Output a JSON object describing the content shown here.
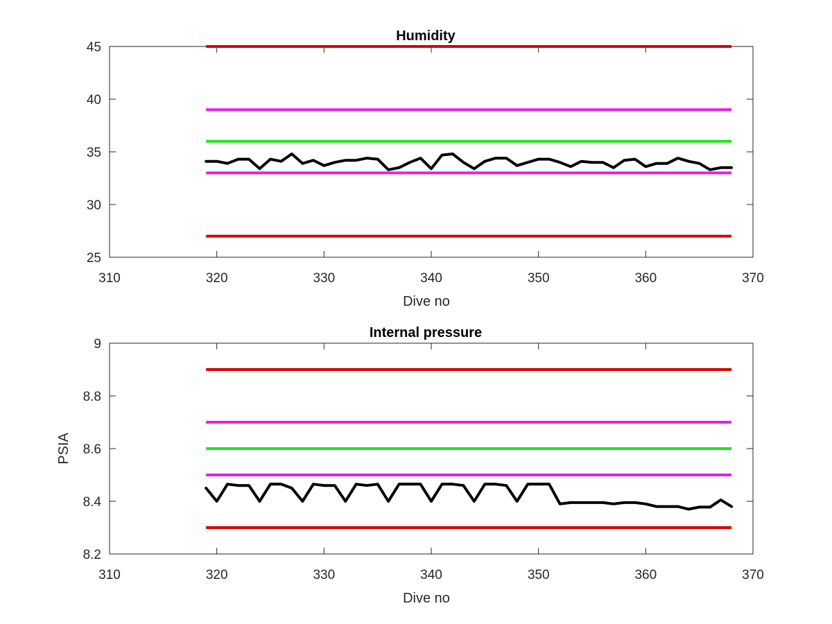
{
  "chart_data": [
    {
      "type": "line",
      "title": "Humidity",
      "xlabel": "Dive no",
      "ylabel": "",
      "xlim": [
        310,
        370
      ],
      "ylim": [
        25,
        45
      ],
      "xticks": [
        310,
        320,
        330,
        340,
        350,
        360,
        370
      ],
      "yticks": [
        25,
        30,
        35,
        40,
        45
      ],
      "xtick_labels": [
        "310",
        "320",
        "330",
        "340",
        "350",
        "360",
        "370"
      ],
      "ytick_labels": [
        "25",
        "30",
        "35",
        "40",
        "45"
      ],
      "grid": false,
      "reference_lines": [
        {
          "y": 45,
          "x_range": [
            319,
            368
          ],
          "color": "#d40000"
        },
        {
          "y": 39,
          "x_range": [
            319,
            368
          ],
          "color": "#e51ee5"
        },
        {
          "y": 36,
          "x_range": [
            319,
            368
          ],
          "color": "#1de61d"
        },
        {
          "y": 33,
          "x_range": [
            319,
            368
          ],
          "color": "#e51ee5"
        },
        {
          "y": 27,
          "x_range": [
            319,
            368
          ],
          "color": "#d40000"
        }
      ],
      "series": [
        {
          "color": "#000000",
          "x": [
            319,
            320,
            321,
            322,
            323,
            324,
            325,
            326,
            327,
            328,
            329,
            330,
            331,
            332,
            333,
            334,
            335,
            336,
            337,
            338,
            339,
            340,
            341,
            342,
            343,
            344,
            345,
            346,
            347,
            348,
            349,
            350,
            351,
            352,
            353,
            354,
            355,
            356,
            357,
            358,
            359,
            360,
            361,
            362,
            363,
            364,
            365,
            366,
            367,
            368
          ],
          "y": [
            34.1,
            34.1,
            33.9,
            34.3,
            34.3,
            33.4,
            34.3,
            34.1,
            34.8,
            33.9,
            34.2,
            33.7,
            34.0,
            34.2,
            34.2,
            34.4,
            34.3,
            33.3,
            33.5,
            34.0,
            34.4,
            33.4,
            34.7,
            34.8,
            34.0,
            33.4,
            34.1,
            34.4,
            34.4,
            33.7,
            34.0,
            34.3,
            34.3,
            34.0,
            33.6,
            34.1,
            34.0,
            34.0,
            33.5,
            34.2,
            34.3,
            33.6,
            33.9,
            33.9,
            34.4,
            34.1,
            33.9,
            33.3,
            33.5,
            33.5
          ]
        }
      ]
    },
    {
      "type": "line",
      "title": "Internal pressure",
      "xlabel": "Dive no",
      "ylabel": "PSIA",
      "xlim": [
        310,
        370
      ],
      "ylim": [
        8.2,
        9.0
      ],
      "xticks": [
        310,
        320,
        330,
        340,
        350,
        360,
        370
      ],
      "yticks": [
        8.2,
        8.4,
        8.6,
        8.8,
        9.0
      ],
      "xtick_labels": [
        "310",
        "320",
        "330",
        "340",
        "350",
        "360",
        "370"
      ],
      "ytick_labels": [
        "8.2",
        "8.4",
        "8.6",
        "8.8",
        "9"
      ],
      "grid": false,
      "reference_lines": [
        {
          "y": 8.9,
          "x_range": [
            319,
            368
          ],
          "color": "#d40000"
        },
        {
          "y": 8.7,
          "x_range": [
            319,
            368
          ],
          "color": "#e51ee5"
        },
        {
          "y": 8.6,
          "x_range": [
            319,
            368
          ],
          "color": "#1de61d"
        },
        {
          "y": 8.5,
          "x_range": [
            319,
            368
          ],
          "color": "#e51ee5"
        },
        {
          "y": 8.3,
          "x_range": [
            319,
            368
          ],
          "color": "#d40000"
        }
      ],
      "series": [
        {
          "color": "#000000",
          "x": [
            319,
            320,
            321,
            322,
            323,
            324,
            325,
            326,
            327,
            328,
            329,
            330,
            331,
            332,
            333,
            334,
            335,
            336,
            337,
            338,
            339,
            340,
            341,
            342,
            343,
            344,
            345,
            346,
            347,
            348,
            349,
            350,
            351,
            352,
            353,
            354,
            355,
            356,
            357,
            358,
            359,
            360,
            361,
            362,
            363,
            364,
            365,
            366,
            367,
            368
          ],
          "y": [
            8.45,
            8.4,
            8.465,
            8.46,
            8.46,
            8.4,
            8.465,
            8.465,
            8.45,
            8.4,
            8.465,
            8.46,
            8.46,
            8.4,
            8.465,
            8.46,
            8.465,
            8.4,
            8.465,
            8.465,
            8.465,
            8.4,
            8.465,
            8.465,
            8.46,
            8.4,
            8.465,
            8.465,
            8.46,
            8.4,
            8.465,
            8.465,
            8.465,
            8.39,
            8.395,
            8.395,
            8.395,
            8.395,
            8.39,
            8.395,
            8.395,
            8.39,
            8.38,
            8.38,
            8.38,
            8.37,
            8.378,
            8.378,
            8.405,
            8.38
          ]
        }
      ]
    }
  ]
}
